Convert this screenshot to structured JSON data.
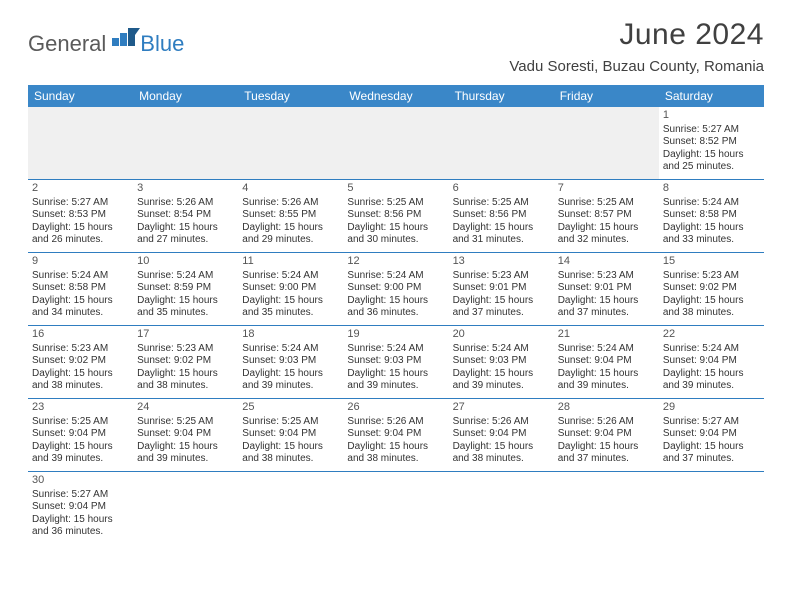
{
  "logo": {
    "general": "General",
    "blue": "Blue"
  },
  "title": "June 2024",
  "location": "Vadu Soresti, Buzau County, Romania",
  "colors": {
    "header_bg": "#3a87c8",
    "row_border": "#2f7dc0",
    "empty_bg": "#f0f0f0",
    "text": "#333333"
  },
  "weekdays": [
    "Sunday",
    "Monday",
    "Tuesday",
    "Wednesday",
    "Thursday",
    "Friday",
    "Saturday"
  ],
  "weeks": [
    [
      null,
      null,
      null,
      null,
      null,
      null,
      {
        "n": "1",
        "sunrise": "Sunrise: 5:27 AM",
        "sunset": "Sunset: 8:52 PM",
        "day1": "Daylight: 15 hours",
        "day2": "and 25 minutes."
      }
    ],
    [
      {
        "n": "2",
        "sunrise": "Sunrise: 5:27 AM",
        "sunset": "Sunset: 8:53 PM",
        "day1": "Daylight: 15 hours",
        "day2": "and 26 minutes."
      },
      {
        "n": "3",
        "sunrise": "Sunrise: 5:26 AM",
        "sunset": "Sunset: 8:54 PM",
        "day1": "Daylight: 15 hours",
        "day2": "and 27 minutes."
      },
      {
        "n": "4",
        "sunrise": "Sunrise: 5:26 AM",
        "sunset": "Sunset: 8:55 PM",
        "day1": "Daylight: 15 hours",
        "day2": "and 29 minutes."
      },
      {
        "n": "5",
        "sunrise": "Sunrise: 5:25 AM",
        "sunset": "Sunset: 8:56 PM",
        "day1": "Daylight: 15 hours",
        "day2": "and 30 minutes."
      },
      {
        "n": "6",
        "sunrise": "Sunrise: 5:25 AM",
        "sunset": "Sunset: 8:56 PM",
        "day1": "Daylight: 15 hours",
        "day2": "and 31 minutes."
      },
      {
        "n": "7",
        "sunrise": "Sunrise: 5:25 AM",
        "sunset": "Sunset: 8:57 PM",
        "day1": "Daylight: 15 hours",
        "day2": "and 32 minutes."
      },
      {
        "n": "8",
        "sunrise": "Sunrise: 5:24 AM",
        "sunset": "Sunset: 8:58 PM",
        "day1": "Daylight: 15 hours",
        "day2": "and 33 minutes."
      }
    ],
    [
      {
        "n": "9",
        "sunrise": "Sunrise: 5:24 AM",
        "sunset": "Sunset: 8:58 PM",
        "day1": "Daylight: 15 hours",
        "day2": "and 34 minutes."
      },
      {
        "n": "10",
        "sunrise": "Sunrise: 5:24 AM",
        "sunset": "Sunset: 8:59 PM",
        "day1": "Daylight: 15 hours",
        "day2": "and 35 minutes."
      },
      {
        "n": "11",
        "sunrise": "Sunrise: 5:24 AM",
        "sunset": "Sunset: 9:00 PM",
        "day1": "Daylight: 15 hours",
        "day2": "and 35 minutes."
      },
      {
        "n": "12",
        "sunrise": "Sunrise: 5:24 AM",
        "sunset": "Sunset: 9:00 PM",
        "day1": "Daylight: 15 hours",
        "day2": "and 36 minutes."
      },
      {
        "n": "13",
        "sunrise": "Sunrise: 5:23 AM",
        "sunset": "Sunset: 9:01 PM",
        "day1": "Daylight: 15 hours",
        "day2": "and 37 minutes."
      },
      {
        "n": "14",
        "sunrise": "Sunrise: 5:23 AM",
        "sunset": "Sunset: 9:01 PM",
        "day1": "Daylight: 15 hours",
        "day2": "and 37 minutes."
      },
      {
        "n": "15",
        "sunrise": "Sunrise: 5:23 AM",
        "sunset": "Sunset: 9:02 PM",
        "day1": "Daylight: 15 hours",
        "day2": "and 38 minutes."
      }
    ],
    [
      {
        "n": "16",
        "sunrise": "Sunrise: 5:23 AM",
        "sunset": "Sunset: 9:02 PM",
        "day1": "Daylight: 15 hours",
        "day2": "and 38 minutes."
      },
      {
        "n": "17",
        "sunrise": "Sunrise: 5:23 AM",
        "sunset": "Sunset: 9:02 PM",
        "day1": "Daylight: 15 hours",
        "day2": "and 38 minutes."
      },
      {
        "n": "18",
        "sunrise": "Sunrise: 5:24 AM",
        "sunset": "Sunset: 9:03 PM",
        "day1": "Daylight: 15 hours",
        "day2": "and 39 minutes."
      },
      {
        "n": "19",
        "sunrise": "Sunrise: 5:24 AM",
        "sunset": "Sunset: 9:03 PM",
        "day1": "Daylight: 15 hours",
        "day2": "and 39 minutes."
      },
      {
        "n": "20",
        "sunrise": "Sunrise: 5:24 AM",
        "sunset": "Sunset: 9:03 PM",
        "day1": "Daylight: 15 hours",
        "day2": "and 39 minutes."
      },
      {
        "n": "21",
        "sunrise": "Sunrise: 5:24 AM",
        "sunset": "Sunset: 9:04 PM",
        "day1": "Daylight: 15 hours",
        "day2": "and 39 minutes."
      },
      {
        "n": "22",
        "sunrise": "Sunrise: 5:24 AM",
        "sunset": "Sunset: 9:04 PM",
        "day1": "Daylight: 15 hours",
        "day2": "and 39 minutes."
      }
    ],
    [
      {
        "n": "23",
        "sunrise": "Sunrise: 5:25 AM",
        "sunset": "Sunset: 9:04 PM",
        "day1": "Daylight: 15 hours",
        "day2": "and 39 minutes."
      },
      {
        "n": "24",
        "sunrise": "Sunrise: 5:25 AM",
        "sunset": "Sunset: 9:04 PM",
        "day1": "Daylight: 15 hours",
        "day2": "and 39 minutes."
      },
      {
        "n": "25",
        "sunrise": "Sunrise: 5:25 AM",
        "sunset": "Sunset: 9:04 PM",
        "day1": "Daylight: 15 hours",
        "day2": "and 38 minutes."
      },
      {
        "n": "26",
        "sunrise": "Sunrise: 5:26 AM",
        "sunset": "Sunset: 9:04 PM",
        "day1": "Daylight: 15 hours",
        "day2": "and 38 minutes."
      },
      {
        "n": "27",
        "sunrise": "Sunrise: 5:26 AM",
        "sunset": "Sunset: 9:04 PM",
        "day1": "Daylight: 15 hours",
        "day2": "and 38 minutes."
      },
      {
        "n": "28",
        "sunrise": "Sunrise: 5:26 AM",
        "sunset": "Sunset: 9:04 PM",
        "day1": "Daylight: 15 hours",
        "day2": "and 37 minutes."
      },
      {
        "n": "29",
        "sunrise": "Sunrise: 5:27 AM",
        "sunset": "Sunset: 9:04 PM",
        "day1": "Daylight: 15 hours",
        "day2": "and 37 minutes."
      }
    ],
    [
      {
        "n": "30",
        "sunrise": "Sunrise: 5:27 AM",
        "sunset": "Sunset: 9:04 PM",
        "day1": "Daylight: 15 hours",
        "day2": "and 36 minutes."
      },
      null,
      null,
      null,
      null,
      null,
      null
    ]
  ]
}
